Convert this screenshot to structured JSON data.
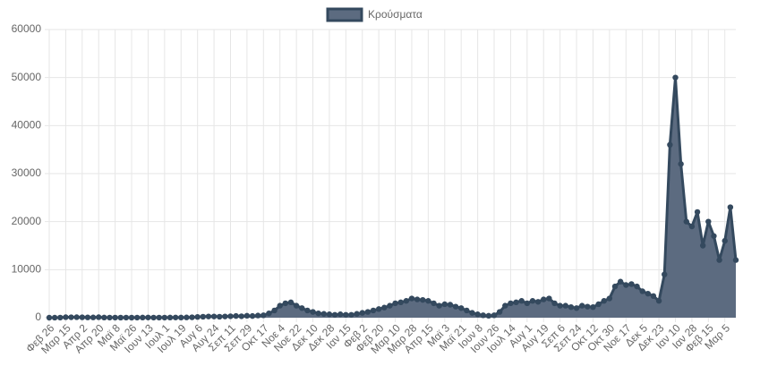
{
  "chart_data": {
    "type": "line",
    "categories": [
      "Φεβ 26",
      null,
      null,
      "Μαρ 15",
      null,
      null,
      "Απρ 2",
      null,
      null,
      "Απρ 20",
      null,
      null,
      "Μαϊ 8",
      null,
      null,
      "Μαϊ 26",
      null,
      null,
      "Ιουν 13",
      null,
      null,
      "Ιουλ 1",
      null,
      null,
      "Ιουλ 19",
      null,
      null,
      "Αυγ 6",
      null,
      null,
      "Αυγ 24",
      null,
      null,
      "Σεπ 11",
      null,
      null,
      "Σεπ 29",
      null,
      null,
      "Οκτ 17",
      null,
      null,
      "Νοε 4",
      null,
      null,
      "Νοε 22",
      null,
      null,
      "Δεκ 10",
      null,
      null,
      "Δεκ 28",
      null,
      null,
      "Ιαν 15",
      null,
      null,
      "Φεβ 2",
      null,
      null,
      "Φεβ 20",
      null,
      null,
      "Μαρ 10",
      null,
      null,
      "Μαρ 28",
      null,
      null,
      "Απρ 15",
      null,
      null,
      "Μαϊ 3",
      null,
      null,
      "Μαϊ 21",
      null,
      null,
      "Ιουν 8",
      null,
      null,
      "Ιουν 26",
      null,
      null,
      "Ιουλ 14",
      null,
      null,
      "Αυγ 1",
      null,
      null,
      "Αυγ 19",
      null,
      null,
      "Σεπ 6",
      null,
      null,
      "Σεπ 24",
      null,
      null,
      "Οκτ 12",
      null,
      null,
      "Οκτ 30",
      null,
      null,
      "Νοε 17",
      null,
      null,
      "Δεκ 5",
      null,
      null,
      "Δεκ 23",
      null,
      null,
      "Ιαν 10",
      null,
      null,
      "Ιαν 28",
      null,
      null,
      "Φεβ 15",
      null,
      null,
      "Μαρ 5",
      null,
      null
    ],
    "series": [
      {
        "name": "Κρούσματα",
        "color": "#34495e",
        "fill": "#5c6b80",
        "values": [
          0,
          5,
          20,
          100,
          90,
          100,
          80,
          60,
          50,
          100,
          30,
          20,
          15,
          10,
          20,
          10,
          15,
          30,
          40,
          20,
          20,
          20,
          30,
          40,
          30,
          50,
          80,
          150,
          200,
          250,
          250,
          200,
          250,
          300,
          350,
          300,
          400,
          350,
          450,
          500,
          900,
          1500,
          2500,
          3000,
          3200,
          2500,
          2000,
          1500,
          1200,
          900,
          800,
          700,
          600,
          700,
          600,
          600,
          800,
          1000,
          1200,
          1500,
          1800,
          2100,
          2500,
          3000,
          3200,
          3500,
          4000,
          3800,
          3700,
          3500,
          3000,
          2500,
          2800,
          2700,
          2300,
          2000,
          1500,
          1000,
          700,
          500,
          400,
          500,
          1200,
          2500,
          3000,
          3200,
          3500,
          3000,
          3500,
          3300,
          3800,
          4000,
          3000,
          2500,
          2500,
          2200,
          2000,
          2500,
          2300,
          2200,
          2800,
          3500,
          4000,
          6500,
          7500,
          6800,
          7000,
          6500,
          5500,
          5000,
          4500,
          3500,
          9000,
          36000,
          50000,
          32000,
          20000,
          19000,
          22000,
          15000,
          20000,
          17000,
          12000,
          16000,
          23000,
          12000
        ]
      }
    ],
    "ylim": [
      0,
      60000
    ],
    "yticks": [
      0,
      10000,
      20000,
      30000,
      40000,
      50000,
      60000
    ],
    "grid": true,
    "legend": "top"
  }
}
